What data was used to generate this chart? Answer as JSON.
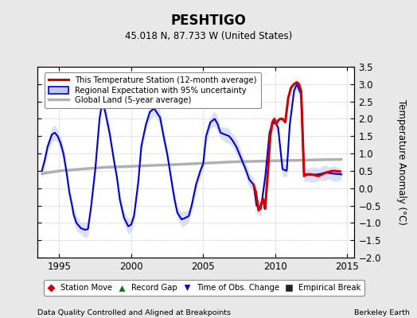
{
  "title": "PESHTIGO",
  "subtitle": "45.018 N, 87.733 W (United States)",
  "xlabel_left": "Data Quality Controlled and Aligned at Breakpoints",
  "xlabel_right": "Berkeley Earth",
  "ylabel": "Temperature Anomaly (°C)",
  "xlim": [
    1993.5,
    2015.5
  ],
  "ylim": [
    -2.0,
    3.5
  ],
  "yticks": [
    -2,
    -1.5,
    -1,
    -0.5,
    0,
    0.5,
    1,
    1.5,
    2,
    2.5,
    3,
    3.5
  ],
  "xticks": [
    1995,
    2000,
    2005,
    2010,
    2015
  ],
  "background_color": "#e8e8e8",
  "plot_bg_color": "#ffffff",
  "grid_color": "#cccccc",
  "red_line_color": "#cc0000",
  "blue_line_color": "#0000cc",
  "blue_fill_color": "#c0c8f0",
  "gray_line_color": "#b0b0b0",
  "legend1_items": [
    "This Temperature Station (12-month average)",
    "Regional Expectation with 95% uncertainty",
    "Global Land (5-year average)"
  ],
  "legend2_items": [
    {
      "label": "Station Move",
      "color": "#cc0000",
      "marker": "D"
    },
    {
      "label": "Record Gap",
      "color": "#007700",
      "marker": "^"
    },
    {
      "label": "Time of Obs. Change",
      "color": "#0000cc",
      "marker": "v"
    },
    {
      "label": "Empirical Break",
      "color": "#222222",
      "marker": "s"
    }
  ],
  "t_reg": [
    1993.8,
    1994.0,
    1994.2,
    1994.5,
    1994.7,
    1994.9,
    1995.1,
    1995.3,
    1995.5,
    1995.7,
    1995.9,
    1996.0,
    1996.2,
    1996.5,
    1996.8,
    1997.0,
    1997.2,
    1997.5,
    1997.8,
    1998.0,
    1998.2,
    1998.5,
    1998.8,
    1999.0,
    1999.2,
    1999.5,
    1999.8,
    2000.0,
    2000.2,
    2000.5,
    2000.7,
    2001.0,
    2001.3,
    2001.6,
    2001.9,
    2002.0,
    2002.2,
    2002.5,
    2002.8,
    2003.0,
    2003.2,
    2003.5,
    2003.8,
    2004.0,
    2004.2,
    2004.5,
    2004.8,
    2005.0,
    2005.2,
    2005.5,
    2005.8,
    2006.0,
    2006.2,
    2006.5,
    2006.8,
    2007.0,
    2007.3,
    2007.6,
    2007.9,
    2008.2,
    2008.5,
    2008.7,
    2009.0,
    2009.3,
    2009.6,
    2009.8,
    2010.0,
    2010.2,
    2010.5,
    2010.8,
    2011.0,
    2011.3,
    2011.5,
    2011.8,
    2012.0,
    2012.5,
    2013.0,
    2013.5,
    2014.0,
    2014.5
  ],
  "v_reg": [
    0.5,
    0.8,
    1.2,
    1.55,
    1.6,
    1.5,
    1.3,
    1.0,
    0.5,
    -0.1,
    -0.5,
    -0.75,
    -1.0,
    -1.15,
    -1.2,
    -1.18,
    -0.6,
    0.5,
    2.0,
    2.5,
    2.2,
    1.6,
    0.8,
    0.35,
    -0.3,
    -0.85,
    -1.1,
    -1.05,
    -0.8,
    0.2,
    1.2,
    1.8,
    2.2,
    2.3,
    2.1,
    2.05,
    1.6,
    1.0,
    0.2,
    -0.3,
    -0.7,
    -0.9,
    -0.85,
    -0.8,
    -0.5,
    0.1,
    0.5,
    0.7,
    1.5,
    1.9,
    2.0,
    1.85,
    1.6,
    1.55,
    1.5,
    1.4,
    1.2,
    0.9,
    0.6,
    0.25,
    0.1,
    -0.5,
    -0.6,
    0.3,
    1.6,
    1.85,
    1.9,
    1.75,
    0.55,
    0.5,
    1.8,
    2.8,
    3.0,
    2.7,
    0.4,
    0.38,
    0.4,
    0.45,
    0.42,
    0.4
  ],
  "t_red": [
    2008.5,
    2008.65,
    2008.85,
    2009.0,
    2009.15,
    2009.3,
    2009.5,
    2009.65,
    2009.8,
    2009.95,
    2010.05,
    2010.2,
    2010.35,
    2010.5,
    2010.7,
    2010.9,
    2011.1,
    2011.3,
    2011.5,
    2011.65,
    2011.8,
    2012.0,
    2012.2,
    2012.5,
    2013.0,
    2013.5,
    2014.0,
    2014.5
  ],
  "v_red": [
    0.1,
    -0.1,
    -0.65,
    -0.5,
    -0.3,
    -0.6,
    0.5,
    1.5,
    1.9,
    2.0,
    1.85,
    1.95,
    2.0,
    2.0,
    1.9,
    2.6,
    2.9,
    3.0,
    3.05,
    3.0,
    2.8,
    0.35,
    0.4,
    0.4,
    0.35,
    0.45,
    0.5,
    0.48
  ],
  "t_gl": [
    1993.8,
    1995.0,
    1996.5,
    1998.0,
    1999.5,
    2001.0,
    2003.0,
    2005.0,
    2007.0,
    2009.0,
    2011.0,
    2013.0,
    2014.5
  ],
  "v_gl": [
    0.42,
    0.5,
    0.55,
    0.6,
    0.62,
    0.65,
    0.68,
    0.72,
    0.76,
    0.78,
    0.8,
    0.82,
    0.83
  ]
}
